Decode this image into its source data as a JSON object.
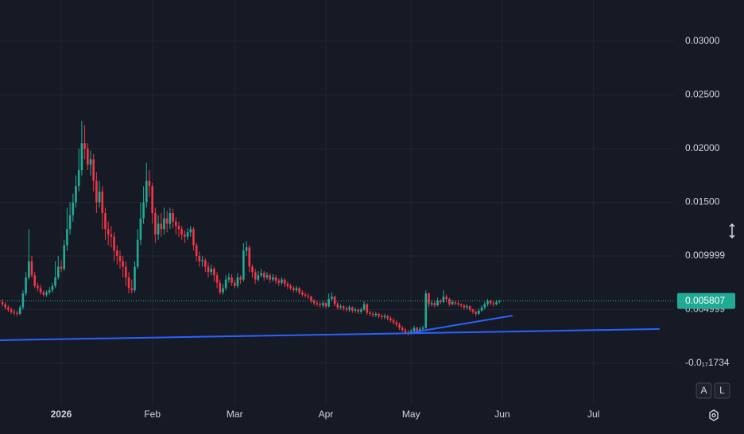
{
  "chart_data": {
    "type": "candlestick",
    "up_color": "#22ab94",
    "down_color": "#f23645",
    "grid": true,
    "ylim": [
      -0.003926,
      0.03385
    ],
    "xlim": [
      -0.81,
      228.4
    ],
    "yticks": [
      0.03,
      0.025,
      0.02,
      0.015,
      0.009999,
      0.004999,
      {
        "value": -1.734e-18,
        "label": "-0.0₁₇1734"
      }
    ],
    "ytick_labels_fixed": [
      "0.03000",
      "0.02500",
      "0.02000",
      "0.01500"
    ],
    "xticks": [
      {
        "value": 20,
        "label": "2026"
      },
      {
        "value": 51,
        "label": "Feb"
      },
      {
        "value": 79,
        "label": "Mar"
      },
      {
        "value": 110,
        "label": "Apr"
      },
      {
        "value": 139,
        "label": "May"
      },
      {
        "value": 170,
        "label": "Jun"
      },
      {
        "value": 201,
        "label": "Jul"
      }
    ],
    "open": [
      0.0057,
      0.0055,
      0.0052,
      0.005,
      0.0048,
      0.0047,
      0.0046,
      0.0052,
      0.0065,
      0.008,
      0.0095,
      0.0082,
      0.0072,
      0.007,
      0.0066,
      0.0064,
      0.0066,
      0.0068,
      0.0072,
      0.008,
      0.009,
      0.0088,
      0.011,
      0.0125,
      0.0138,
      0.015,
      0.0165,
      0.018,
      0.0205,
      0.02,
      0.0185,
      0.019,
      0.017,
      0.015,
      0.016,
      0.014,
      0.0125,
      0.012,
      0.0118,
      0.0105,
      0.01,
      0.0095,
      0.009,
      0.008,
      0.007,
      0.0068,
      0.009,
      0.0115,
      0.0135,
      0.015,
      0.017,
      0.0165,
      0.014,
      0.012,
      0.013,
      0.0125,
      0.0135,
      0.013,
      0.014,
      0.0132,
      0.0128,
      0.0125,
      0.012,
      0.0118,
      0.0122,
      0.0125,
      0.011,
      0.01,
      0.0095,
      0.0096,
      0.009,
      0.0085,
      0.0088,
      0.0082,
      0.0075,
      0.0066,
      0.007,
      0.0078,
      0.008,
      0.0075,
      0.0072,
      0.008,
      0.0078,
      0.0105,
      0.0108,
      0.009,
      0.0085,
      0.0078,
      0.0082,
      0.0084,
      0.008,
      0.0082,
      0.0078,
      0.008,
      0.0077,
      0.0075,
      0.0078,
      0.0074,
      0.0072,
      0.007,
      0.0068,
      0.007,
      0.0066,
      0.0064,
      0.0063,
      0.0062,
      0.0058,
      0.0056,
      0.0055,
      0.0054,
      0.0056,
      0.0053,
      0.006,
      0.0062,
      0.0055,
      0.0052,
      0.0053,
      0.0051,
      0.005,
      0.0052,
      0.0049,
      0.005,
      0.0048,
      0.005,
      0.0055,
      0.0047,
      0.0046,
      0.0045,
      0.0046,
      0.0044,
      0.0043,
      0.0044,
      0.0042,
      0.004,
      0.0038,
      0.0036,
      0.0033,
      0.0031,
      0.0029,
      0.0028,
      0.003,
      0.0033,
      0.003,
      0.0032,
      0.0033,
      0.0065,
      0.0055,
      0.0056,
      0.0054,
      0.0058,
      0.0057,
      0.0062,
      0.006,
      0.0055,
      0.0057,
      0.0056,
      0.0055,
      0.0054,
      0.0052,
      0.0053,
      0.005,
      0.0048,
      0.0046,
      0.0049,
      0.0052,
      0.0055,
      0.0058,
      0.0056,
      0.0055,
      0.0057
    ],
    "high": [
      0.006,
      0.0057,
      0.0054,
      0.0052,
      0.005,
      0.0049,
      0.0054,
      0.0068,
      0.0085,
      0.0125,
      0.01,
      0.0085,
      0.0075,
      0.0073,
      0.0068,
      0.0068,
      0.0071,
      0.0075,
      0.0095,
      0.01,
      0.0096,
      0.0115,
      0.0145,
      0.015,
      0.0158,
      0.0175,
      0.02,
      0.0226,
      0.0222,
      0.0205,
      0.0198,
      0.0195,
      0.0178,
      0.017,
      0.0165,
      0.0145,
      0.0132,
      0.0128,
      0.0122,
      0.011,
      0.0105,
      0.01,
      0.0095,
      0.0085,
      0.0078,
      0.0095,
      0.0125,
      0.015,
      0.0165,
      0.0187,
      0.018,
      0.0168,
      0.0145,
      0.0138,
      0.014,
      0.0145,
      0.0142,
      0.0145,
      0.0144,
      0.0136,
      0.0132,
      0.0128,
      0.0124,
      0.0126,
      0.0128,
      0.0127,
      0.0112,
      0.0104,
      0.01,
      0.0098,
      0.0094,
      0.0092,
      0.009,
      0.0085,
      0.0078,
      0.0074,
      0.0082,
      0.0084,
      0.0083,
      0.0078,
      0.0084,
      0.0082,
      0.0112,
      0.0114,
      0.011,
      0.0092,
      0.0088,
      0.0086,
      0.0088,
      0.0086,
      0.0085,
      0.0084,
      0.0083,
      0.0082,
      0.0079,
      0.008,
      0.0079,
      0.0076,
      0.0074,
      0.0072,
      0.0072,
      0.0071,
      0.0068,
      0.0066,
      0.0065,
      0.0063,
      0.006,
      0.0058,
      0.0057,
      0.0058,
      0.0057,
      0.0065,
      0.0066,
      0.0063,
      0.0057,
      0.0055,
      0.0054,
      0.0053,
      0.0054,
      0.0053,
      0.0052,
      0.0051,
      0.0052,
      0.0058,
      0.0056,
      0.0049,
      0.0048,
      0.0048,
      0.0047,
      0.0046,
      0.0046,
      0.0045,
      0.0044,
      0.0042,
      0.004,
      0.0038,
      0.0035,
      0.0033,
      0.0031,
      0.0032,
      0.0035,
      0.0034,
      0.0034,
      0.0035,
      0.0068,
      0.0066,
      0.0059,
      0.0058,
      0.0061,
      0.006,
      0.0068,
      0.0064,
      0.0061,
      0.0059,
      0.0058,
      0.0058,
      0.0056,
      0.0055,
      0.0055,
      0.0054,
      0.0051,
      0.0049,
      0.0051,
      0.0054,
      0.0057,
      0.006,
      0.0059,
      0.0058,
      0.0059,
      0.0059
    ],
    "low": [
      0.0053,
      0.005,
      0.0048,
      0.0046,
      0.0045,
      0.0044,
      0.0045,
      0.005,
      0.0063,
      0.0078,
      0.008,
      0.007,
      0.0067,
      0.0064,
      0.0062,
      0.0062,
      0.0064,
      0.0066,
      0.007,
      0.0078,
      0.0085,
      0.0086,
      0.0105,
      0.012,
      0.0132,
      0.0145,
      0.016,
      0.0175,
      0.019,
      0.018,
      0.0175,
      0.016,
      0.014,
      0.0145,
      0.0125,
      0.0115,
      0.011,
      0.0108,
      0.0095,
      0.0092,
      0.0088,
      0.008,
      0.0072,
      0.0065,
      0.0065,
      0.0066,
      0.0088,
      0.011,
      0.013,
      0.0145,
      0.0155,
      0.013,
      0.0112,
      0.0115,
      0.0118,
      0.012,
      0.0122,
      0.0125,
      0.0126,
      0.012,
      0.0118,
      0.0115,
      0.0112,
      0.0115,
      0.0118,
      0.0105,
      0.0095,
      0.009,
      0.009,
      0.0085,
      0.008,
      0.0082,
      0.0076,
      0.007,
      0.0064,
      0.0064,
      0.0068,
      0.0075,
      0.0072,
      0.007,
      0.007,
      0.0074,
      0.0076,
      0.01,
      0.0085,
      0.008,
      0.0074,
      0.0076,
      0.008,
      0.0077,
      0.0078,
      0.0075,
      0.0076,
      0.0074,
      0.0072,
      0.0073,
      0.0071,
      0.0069,
      0.0068,
      0.0066,
      0.0066,
      0.0064,
      0.0062,
      0.0061,
      0.006,
      0.0056,
      0.0054,
      0.0053,
      0.0052,
      0.0052,
      0.0051,
      0.0052,
      0.0058,
      0.0053,
      0.005,
      0.005,
      0.0049,
      0.0048,
      0.0048,
      0.0047,
      0.0047,
      0.0046,
      0.0046,
      0.0049,
      0.0045,
      0.0044,
      0.0043,
      0.0043,
      0.0042,
      0.0041,
      0.0041,
      0.004,
      0.0038,
      0.0036,
      0.0034,
      0.0031,
      0.0029,
      0.0027,
      0.0026,
      0.0027,
      0.0028,
      0.0028,
      0.0029,
      0.003,
      0.0032,
      0.0052,
      0.0053,
      0.0052,
      0.0053,
      0.0055,
      0.0056,
      0.0057,
      0.0053,
      0.0054,
      0.0054,
      0.0053,
      0.0052,
      0.005,
      0.005,
      0.0048,
      0.0046,
      0.0044,
      0.0045,
      0.0048,
      0.005,
      0.0053,
      0.0054,
      0.0053,
      0.0054,
      0.0056
    ],
    "close": [
      0.0055,
      0.0052,
      0.005,
      0.0048,
      0.0047,
      0.0046,
      0.0052,
      0.0065,
      0.008,
      0.0095,
      0.0082,
      0.0072,
      0.007,
      0.0066,
      0.0064,
      0.0066,
      0.0068,
      0.0072,
      0.008,
      0.009,
      0.0088,
      0.011,
      0.0125,
      0.0138,
      0.015,
      0.0165,
      0.018,
      0.0205,
      0.02,
      0.0185,
      0.019,
      0.017,
      0.015,
      0.016,
      0.014,
      0.0125,
      0.012,
      0.0118,
      0.0105,
      0.01,
      0.0095,
      0.009,
      0.008,
      0.007,
      0.0068,
      0.009,
      0.0115,
      0.0135,
      0.015,
      0.017,
      0.0165,
      0.014,
      0.012,
      0.013,
      0.0125,
      0.0135,
      0.013,
      0.014,
      0.0132,
      0.0128,
      0.0125,
      0.012,
      0.0118,
      0.0122,
      0.0125,
      0.011,
      0.01,
      0.0095,
      0.0096,
      0.009,
      0.0085,
      0.0088,
      0.0082,
      0.0075,
      0.0066,
      0.007,
      0.0078,
      0.008,
      0.0075,
      0.0072,
      0.008,
      0.0078,
      0.0105,
      0.0108,
      0.009,
      0.0085,
      0.0078,
      0.0082,
      0.0084,
      0.008,
      0.0082,
      0.0078,
      0.008,
      0.0077,
      0.0075,
      0.0078,
      0.0074,
      0.0072,
      0.007,
      0.0068,
      0.007,
      0.0066,
      0.0064,
      0.0063,
      0.0062,
      0.0058,
      0.0056,
      0.0055,
      0.0054,
      0.0056,
      0.0053,
      0.006,
      0.0062,
      0.0055,
      0.0052,
      0.0053,
      0.0051,
      0.005,
      0.0052,
      0.0049,
      0.005,
      0.0048,
      0.005,
      0.0055,
      0.0047,
      0.0046,
      0.0045,
      0.0046,
      0.0044,
      0.0043,
      0.0044,
      0.0042,
      0.004,
      0.0038,
      0.0036,
      0.0033,
      0.0031,
      0.0029,
      0.0028,
      0.003,
      0.0033,
      0.003,
      0.0032,
      0.0033,
      0.0065,
      0.0055,
      0.0056,
      0.0054,
      0.0058,
      0.0057,
      0.0062,
      0.006,
      0.0055,
      0.0057,
      0.0056,
      0.0055,
      0.0054,
      0.0052,
      0.0053,
      0.005,
      0.0048,
      0.0046,
      0.0049,
      0.0052,
      0.0055,
      0.0058,
      0.0056,
      0.0055,
      0.0057,
      0.005807
    ],
    "trend_lines": [
      {
        "color": "#2962ff",
        "x": [
          -0.8,
          223.5
        ],
        "y": [
          0.00215,
          0.00319
        ]
      },
      {
        "color": "#2962ff",
        "x": [
          139.7,
          173.5
        ],
        "y": [
          0.00289,
          0.00444
        ]
      }
    ],
    "buttons": [
      "A",
      "L"
    ]
  }
}
